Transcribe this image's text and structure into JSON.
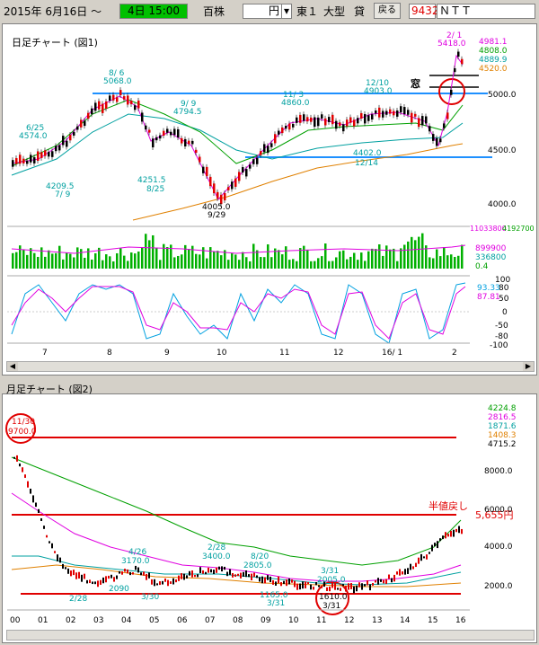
{
  "toolbar": {
    "date_label": "2015年  6月16日 ～",
    "time_value": "4日 15:00",
    "period_label": "百株",
    "unit_value": "円",
    "dropdown_arrow": "▾",
    "market_label": "東１",
    "size_label": "大型",
    "lend_label": "貸",
    "back_button": "戻る",
    "code_value": "9432",
    "name_value": "ＮＴＴ"
  },
  "daily_chart": {
    "title": "日足チャート  (図1)",
    "annotations": {
      "peak1": "8/ 6",
      "peak1_val": "5068.0",
      "a625": "6/25",
      "a625_val": "4574.0",
      "a79_val": "4209.5",
      "a79": "7/ 9",
      "a99": "9/ 9",
      "a99_val": "4794.5",
      "a825_val": "4251.5",
      "a825": "8/25",
      "low": "4005.0",
      "low_date": "9/29",
      "a113": "11/ 3",
      "a113_val": "4860.0",
      "a1210": "12/10",
      "a1210_val": "4903.0",
      "a1214_val": "4402.0",
      "a1214": "12/14",
      "top_date": "2/ 1",
      "top_val": "5418.0",
      "window_label": "窓"
    },
    "price_axis": [
      "5000.0",
      "4500.0",
      "4000.0"
    ],
    "legend": [
      "4981.1",
      "4808.0",
      "4889.9",
      "4520.0"
    ],
    "legend_colors": [
      "#e000e0",
      "#00a000",
      "#00a0a0",
      "#e08000"
    ],
    "volume_labels": [
      "11033800",
      "4192700"
    ],
    "volume_legend": [
      "899900",
      "336800",
      "0.4"
    ],
    "stoch_axis": [
      "100",
      "80",
      "50",
      "0",
      "-50",
      "-80",
      "-100"
    ],
    "stoch_values": [
      "93.33",
      "87.81"
    ],
    "month_labels": [
      "7",
      "8",
      "9",
      "10",
      "11",
      "12",
      "16/ 1",
      "2"
    ]
  },
  "monthly_chart": {
    "title": "月足チャート  (図2)",
    "annotations": {
      "top_date": "11/30",
      "top_val": "9700.0",
      "a426": "4/26",
      "a426_val": "3170.0",
      "a228b": "2/28",
      "a228b_val": "3400.0",
      "a820": "8/20",
      "a820_val": "2805.0",
      "a331": "3/31",
      "a331_val": "2005.0",
      "low_val": "1610.0",
      "low_date": "3/31",
      "a228": "2/28",
      "v2090": "2090",
      "a330": "3/30",
      "v1165": "1165.0",
      "a331b": "3/31",
      "a1600": "1600.0",
      "half_label": "半値戻し",
      "half_value": "5,655円"
    },
    "price_axis": [
      "8000.0",
      "6000.0",
      "4000.0",
      "2000.0"
    ],
    "legend": [
      "4224.8",
      "2816.5",
      "1871.6",
      "1408.3",
      "4715.2"
    ],
    "legend_colors": [
      "#00a000",
      "#e000e0",
      "#00a0a0",
      "#e08000",
      "#000000"
    ],
    "year_labels": [
      "00",
      "01",
      "02",
      "03",
      "04",
      "05",
      "06",
      "07",
      "08",
      "09",
      "10",
      "11",
      "12",
      "13",
      "14",
      "15",
      "16"
    ]
  },
  "colors": {
    "support_line": "#1e90ff",
    "red_line": "#e00000",
    "candle_up": "#e00000",
    "volume_bar": "#00b000"
  }
}
